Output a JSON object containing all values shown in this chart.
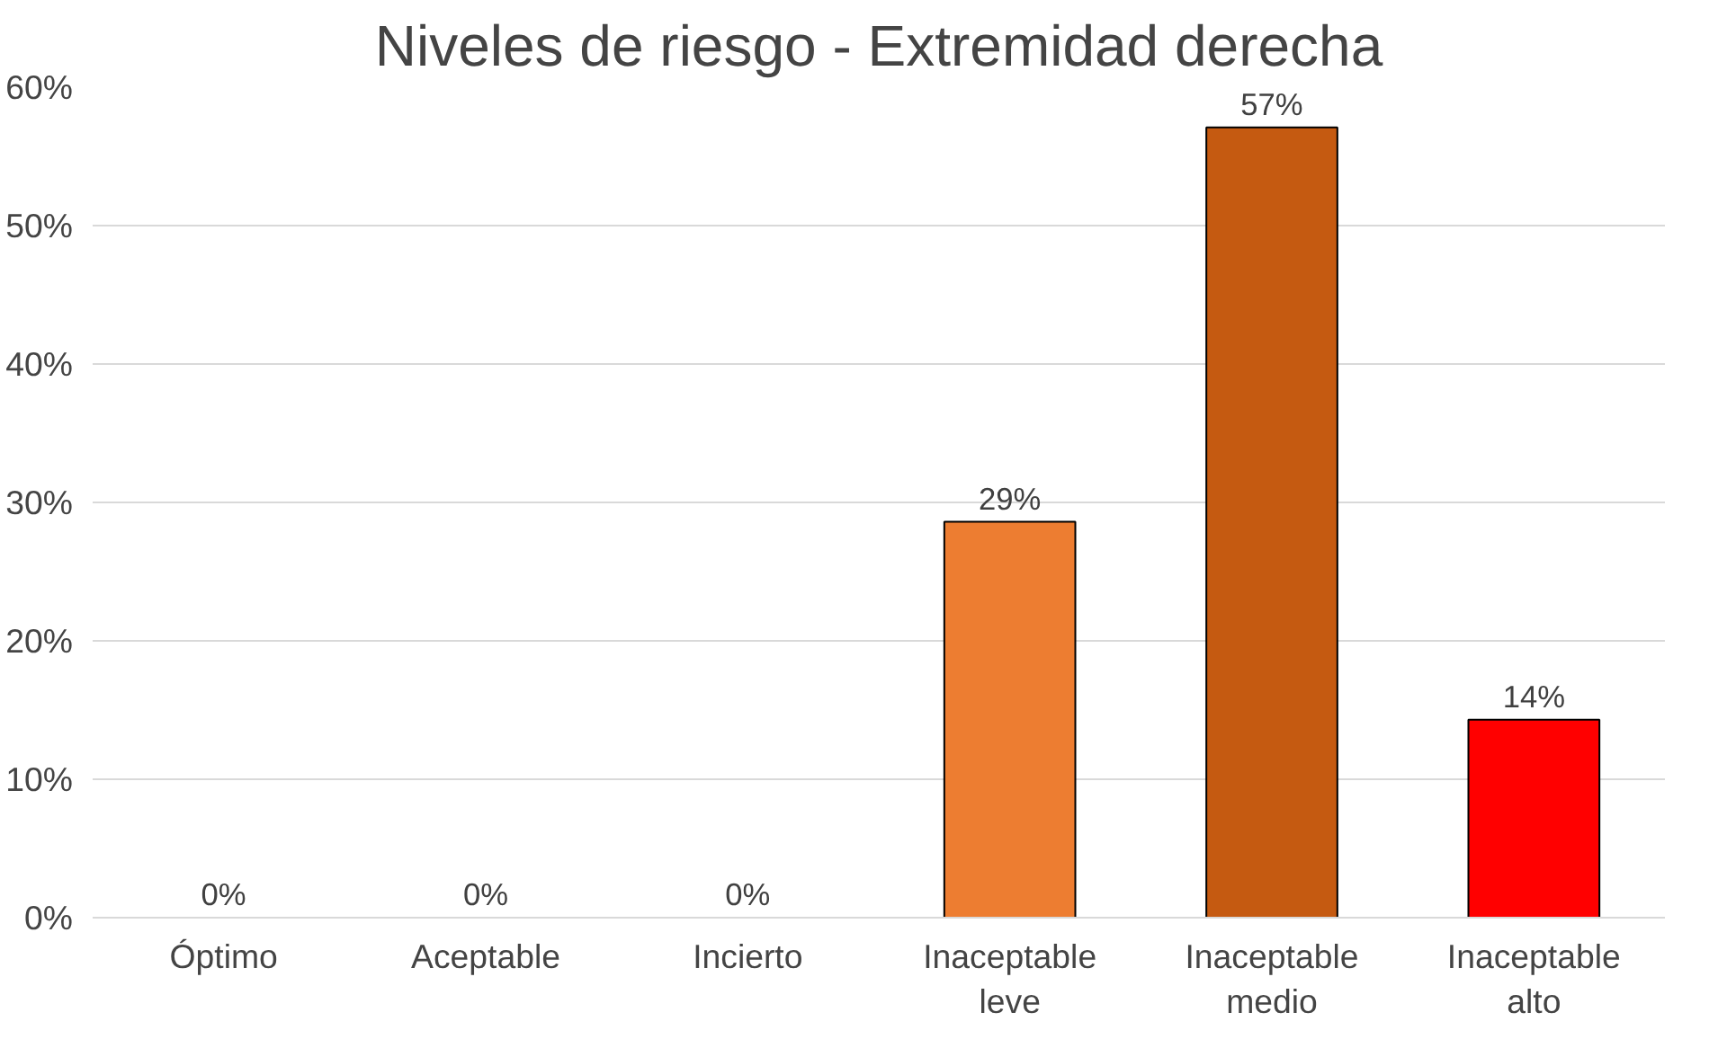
{
  "chart_data": {
    "type": "bar",
    "title": "Niveles de riesgo - Extremidad derecha",
    "categories": [
      "Óptimo",
      "Aceptable",
      "Incierto",
      "Inaceptable\nleve",
      "Inaceptable\nmedio",
      "Inaceptable\nalto"
    ],
    "values": [
      0,
      0,
      0,
      28.6,
      57.1,
      14.3
    ],
    "colors": [
      "#ed7d31",
      "#ed7d31",
      "#ed7d31",
      "#ed7d31",
      "#c55a11",
      "#ff0000"
    ],
    "value_labels": [
      "0%",
      "0%",
      "0%",
      "29%",
      "57%",
      "14%"
    ],
    "ylim": [
      0,
      60
    ],
    "yticks": [
      {
        "value": 0,
        "label": "0%"
      },
      {
        "value": 10,
        "label": "10%"
      },
      {
        "value": 20,
        "label": "20%"
      },
      {
        "value": 30,
        "label": "30%"
      },
      {
        "value": 40,
        "label": "40%"
      },
      {
        "value": 50,
        "label": "50%"
      },
      {
        "value": 60,
        "label": "60%"
      }
    ],
    "grid": "y"
  }
}
